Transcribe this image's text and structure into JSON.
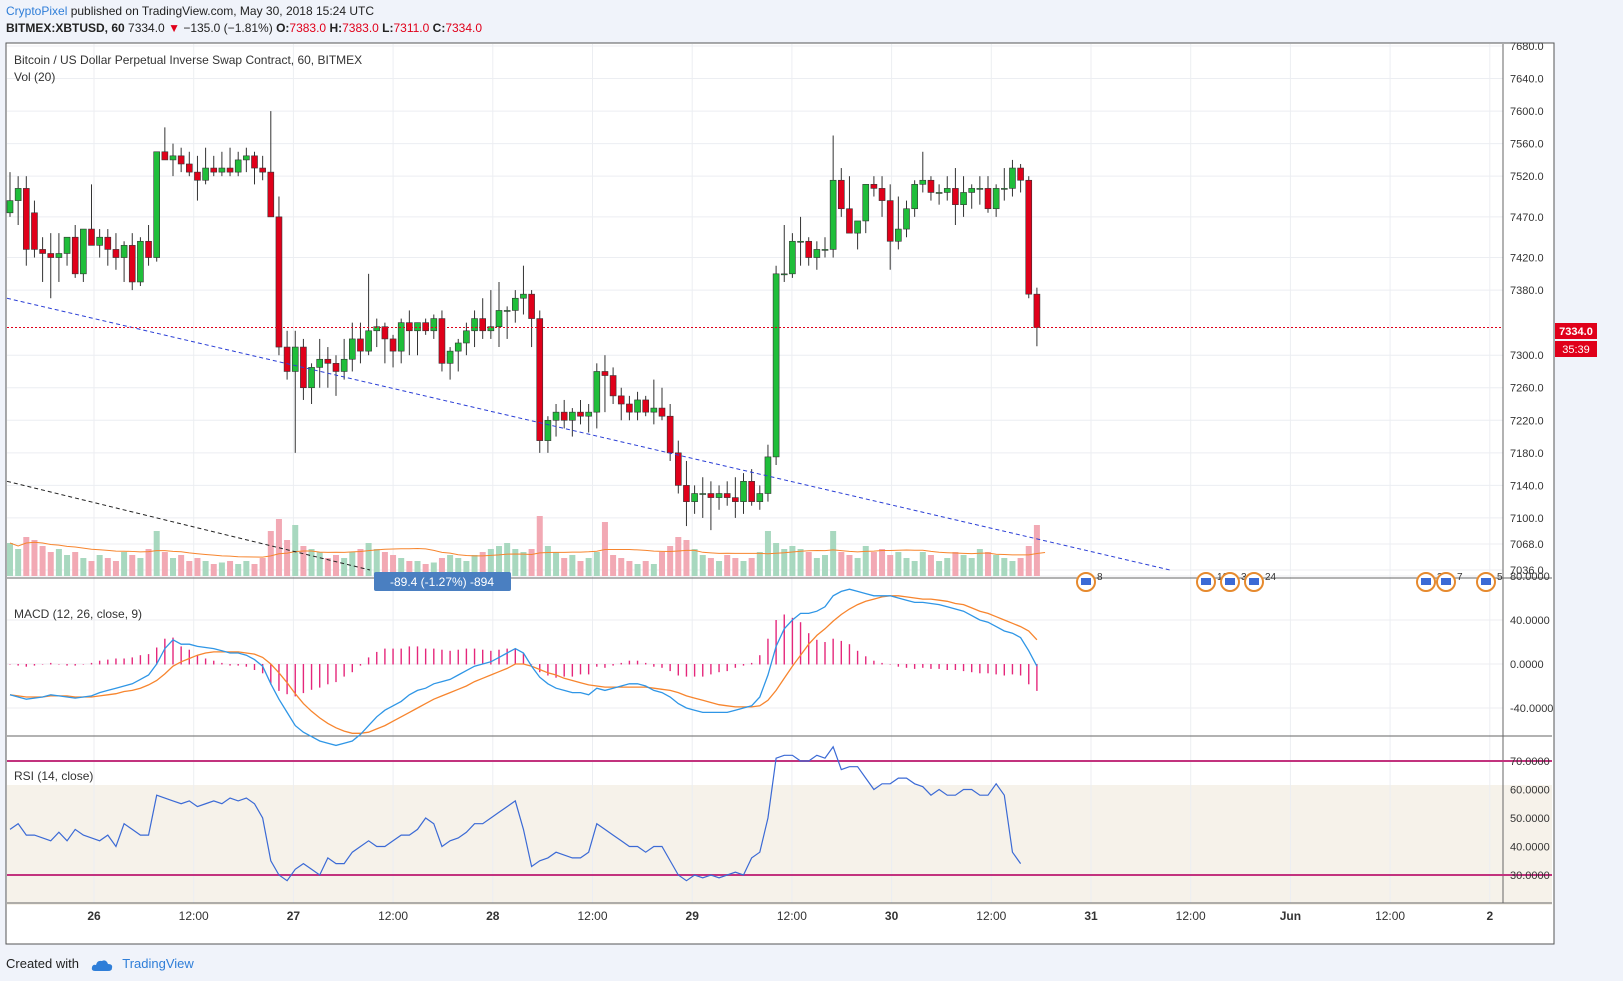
{
  "header": {
    "author": "CryptoPixel",
    "published": "published on TradingView.com, May 30, 2018 15:24 UTC",
    "symbol": "BITMEX:XBTUSD, 60",
    "last": "7334.0",
    "change": "−135.0 (−1.81%)",
    "o_label": "O:",
    "o_val": "7383.0",
    "h_label": "H:",
    "h_val": "7383.0",
    "l_label": "L:",
    "l_val": "7311.0",
    "c_label": "C:",
    "c_val": "7334.0"
  },
  "footer": {
    "created": "Created with",
    "brand": "TradingView"
  },
  "colors": {
    "up": "#1fbe3a",
    "down": "#e0001a",
    "vol_up": "#a8d8bf",
    "vol_down": "#f2a9b4",
    "macd": "#2f96e6",
    "signal": "#f7852e",
    "hist": "#e5277b",
    "rsi": "#3b6ad5",
    "rsi_band": "#c2337e",
    "trend_blue": "#2b3fd6",
    "trend_black": "#222222"
  },
  "chart_data": {
    "type": "candlestick",
    "title": "Bitcoin / US Dollar Perpetual Inverse Swap Contract, 60, BITMEX",
    "volume_label": "Vol (20)",
    "macd_label": "MACD (12, 26, close, 9)",
    "rsi_label": "RSI (14, close)",
    "price_axis": [
      "7680.0",
      "7640.0",
      "7600.0",
      "7560.0",
      "7520.0",
      "7470.0",
      "7420.0",
      "7380.0",
      "7300.0",
      "7260.0",
      "7220.0",
      "7180.0",
      "7140.0",
      "7100.0",
      "7068.0",
      "7036.0"
    ],
    "price_axis_values": [
      7680,
      7640,
      7600,
      7560,
      7520,
      7470,
      7420,
      7380,
      7300,
      7260,
      7220,
      7180,
      7140,
      7100,
      7068,
      7036
    ],
    "price_range": [
      7036,
      7680
    ],
    "last_price_label": "7334.0",
    "countdown_label": "35:39",
    "macd_axis": [
      "80.0000",
      "40.0000",
      "0.0000",
      "-40.0000"
    ],
    "macd_axis_values": [
      80,
      40,
      0,
      -40
    ],
    "rsi_axis": [
      "70.0000",
      "60.0000",
      "50.0000",
      "40.0000",
      "30.0000"
    ],
    "rsi_axis_values": [
      70,
      60,
      50,
      40,
      30
    ],
    "rsi_bands": [
      70,
      30
    ],
    "x_labels": [
      "26",
      "12:00",
      "27",
      "12:00",
      "28",
      "12:00",
      "29",
      "12:00",
      "30",
      "12:00",
      "31",
      "12:00",
      "Jun",
      "12:00",
      "2"
    ],
    "x_labels_bold": [
      true,
      false,
      true,
      false,
      true,
      false,
      true,
      false,
      true,
      false,
      true,
      false,
      true,
      false,
      true
    ],
    "measure_label": "-89.4 (-1.27%) -894",
    "event_markers": [
      "8",
      "102",
      "3",
      "24",
      "34",
      "7",
      "5"
    ],
    "candles_ohlc": [
      [
        7475,
        7525,
        7470,
        7490
      ],
      [
        7490,
        7520,
        7460,
        7505
      ],
      [
        7505,
        7520,
        7410,
        7430
      ],
      [
        7475,
        7490,
        7420,
        7430
      ],
      [
        7430,
        7445,
        7390,
        7425
      ],
      [
        7425,
        7450,
        7370,
        7420
      ],
      [
        7420,
        7450,
        7390,
        7425
      ],
      [
        7425,
        7440,
        7410,
        7445
      ],
      [
        7445,
        7460,
        7395,
        7400
      ],
      [
        7400,
        7450,
        7390,
        7455
      ],
      [
        7455,
        7510,
        7440,
        7435
      ],
      [
        7435,
        7455,
        7420,
        7445
      ],
      [
        7445,
        7455,
        7410,
        7430
      ],
      [
        7430,
        7450,
        7405,
        7420
      ],
      [
        7420,
        7440,
        7390,
        7435
      ],
      [
        7435,
        7450,
        7380,
        7390
      ],
      [
        7390,
        7445,
        7385,
        7440
      ],
      [
        7440,
        7460,
        7410,
        7420
      ],
      [
        7420,
        7450,
        7415,
        7550
      ],
      [
        7550,
        7580,
        7540,
        7540
      ],
      [
        7540,
        7560,
        7520,
        7545
      ],
      [
        7545,
        7555,
        7525,
        7535
      ],
      [
        7535,
        7550,
        7520,
        7525
      ],
      [
        7525,
        7545,
        7490,
        7515
      ],
      [
        7515,
        7555,
        7510,
        7530
      ],
      [
        7530,
        7545,
        7520,
        7525
      ],
      [
        7525,
        7550,
        7520,
        7530
      ],
      [
        7530,
        7555,
        7520,
        7525
      ],
      [
        7525,
        7550,
        7520,
        7540
      ],
      [
        7540,
        7555,
        7525,
        7545
      ],
      [
        7545,
        7550,
        7510,
        7530
      ],
      [
        7530,
        7545,
        7515,
        7525
      ],
      [
        7525,
        7600,
        7470,
        7470
      ],
      [
        7470,
        7495,
        7300,
        7310
      ],
      [
        7310,
        7330,
        7270,
        7280
      ],
      [
        7280,
        7330,
        7180,
        7310
      ],
      [
        7310,
        7320,
        7245,
        7260
      ],
      [
        7260,
        7290,
        7240,
        7285
      ],
      [
        7285,
        7320,
        7260,
        7295
      ],
      [
        7295,
        7310,
        7260,
        7290
      ],
      [
        7290,
        7300,
        7250,
        7280
      ],
      [
        7280,
        7320,
        7270,
        7295
      ],
      [
        7295,
        7340,
        7280,
        7320
      ],
      [
        7320,
        7340,
        7290,
        7305
      ],
      [
        7305,
        7400,
        7300,
        7330
      ],
      [
        7330,
        7345,
        7310,
        7335
      ],
      [
        7335,
        7340,
        7290,
        7320
      ],
      [
        7320,
        7325,
        7285,
        7305
      ],
      [
        7305,
        7345,
        7290,
        7340
      ],
      [
        7340,
        7355,
        7300,
        7330
      ],
      [
        7330,
        7340,
        7300,
        7340
      ],
      [
        7340,
        7345,
        7325,
        7330
      ],
      [
        7330,
        7350,
        7320,
        7345
      ],
      [
        7345,
        7355,
        7280,
        7290
      ],
      [
        7290,
        7310,
        7270,
        7305
      ],
      [
        7305,
        7320,
        7280,
        7315
      ],
      [
        7315,
        7340,
        7300,
        7330
      ],
      [
        7330,
        7355,
        7310,
        7345
      ],
      [
        7345,
        7370,
        7320,
        7330
      ],
      [
        7330,
        7380,
        7320,
        7335
      ],
      [
        7335,
        7390,
        7310,
        7355
      ],
      [
        7355,
        7360,
        7320,
        7355
      ],
      [
        7355,
        7380,
        7340,
        7370
      ],
      [
        7370,
        7410,
        7350,
        7375
      ],
      [
        7375,
        7380,
        7310,
        7345
      ],
      [
        7345,
        7355,
        7180,
        7195
      ],
      [
        7195,
        7225,
        7180,
        7220
      ],
      [
        7220,
        7240,
        7200,
        7230
      ],
      [
        7230,
        7245,
        7210,
        7220
      ],
      [
        7220,
        7235,
        7200,
        7230
      ],
      [
        7230,
        7245,
        7215,
        7225
      ],
      [
        7225,
        7240,
        7205,
        7230
      ],
      [
        7230,
        7290,
        7210,
        7280
      ],
      [
        7280,
        7300,
        7230,
        7275
      ],
      [
        7275,
        7285,
        7240,
        7250
      ],
      [
        7250,
        7260,
        7220,
        7240
      ],
      [
        7240,
        7250,
        7220,
        7230
      ],
      [
        7230,
        7255,
        7220,
        7245
      ],
      [
        7245,
        7250,
        7225,
        7230
      ],
      [
        7230,
        7270,
        7215,
        7235
      ],
      [
        7235,
        7260,
        7220,
        7225
      ],
      [
        7225,
        7240,
        7170,
        7180
      ],
      [
        7180,
        7195,
        7130,
        7140
      ],
      [
        7140,
        7170,
        7090,
        7120
      ],
      [
        7120,
        7140,
        7105,
        7130
      ],
      [
        7130,
        7150,
        7100,
        7130
      ],
      [
        7130,
        7145,
        7085,
        7125
      ],
      [
        7125,
        7140,
        7110,
        7130
      ],
      [
        7130,
        7145,
        7115,
        7125
      ],
      [
        7125,
        7150,
        7100,
        7120
      ],
      [
        7120,
        7155,
        7105,
        7145
      ],
      [
        7145,
        7160,
        7115,
        7120
      ],
      [
        7120,
        7140,
        7110,
        7130
      ],
      [
        7130,
        7190,
        7120,
        7175
      ],
      [
        7175,
        7410,
        7165,
        7400
      ],
      [
        7400,
        7460,
        7390,
        7400
      ],
      [
        7400,
        7450,
        7395,
        7440
      ],
      [
        7440,
        7470,
        7410,
        7440
      ],
      [
        7440,
        7445,
        7410,
        7420
      ],
      [
        7420,
        7440,
        7405,
        7430
      ],
      [
        7430,
        7445,
        7420,
        7430
      ],
      [
        7430,
        7570,
        7420,
        7515
      ],
      [
        7515,
        7530,
        7470,
        7480
      ],
      [
        7480,
        7520,
        7460,
        7450
      ],
      [
        7450,
        7460,
        7430,
        7465
      ],
      [
        7465,
        7505,
        7450,
        7510
      ],
      [
        7510,
        7520,
        7495,
        7505
      ],
      [
        7505,
        7520,
        7470,
        7490
      ],
      [
        7490,
        7510,
        7405,
        7440
      ],
      [
        7440,
        7495,
        7430,
        7455
      ],
      [
        7455,
        7490,
        7445,
        7480
      ],
      [
        7480,
        7515,
        7470,
        7510
      ],
      [
        7510,
        7550,
        7500,
        7515
      ],
      [
        7515,
        7520,
        7490,
        7500
      ],
      [
        7500,
        7510,
        7485,
        7500
      ],
      [
        7500,
        7520,
        7490,
        7505
      ],
      [
        7505,
        7530,
        7460,
        7485
      ],
      [
        7485,
        7520,
        7470,
        7500
      ],
      [
        7500,
        7510,
        7480,
        7505
      ],
      [
        7505,
        7520,
        7485,
        7505
      ],
      [
        7505,
        7520,
        7475,
        7480
      ],
      [
        7480,
        7510,
        7470,
        7505
      ],
      [
        7505,
        7530,
        7490,
        7505
      ],
      [
        7505,
        7540,
        7495,
        7530
      ],
      [
        7530,
        7535,
        7500,
        7515
      ],
      [
        7515,
        7520,
        7370,
        7375
      ],
      [
        7375,
        7383,
        7311,
        7334
      ]
    ],
    "volume": [
      22,
      18,
      26,
      24,
      20,
      16,
      18,
      14,
      16,
      12,
      10,
      14,
      12,
      10,
      16,
      14,
      12,
      18,
      30,
      16,
      12,
      14,
      10,
      12,
      10,
      8,
      9,
      10,
      8,
      10,
      8,
      12,
      30,
      38,
      24,
      34,
      20,
      18,
      16,
      12,
      14,
      12,
      16,
      18,
      22,
      18,
      16,
      14,
      12,
      10,
      10,
      8,
      9,
      12,
      14,
      12,
      10,
      14,
      16,
      18,
      20,
      22,
      18,
      16,
      18,
      40,
      20,
      16,
      12,
      14,
      10,
      12,
      16,
      36,
      14,
      12,
      10,
      8,
      10,
      8,
      16,
      20,
      26,
      24,
      18,
      14,
      12,
      10,
      14,
      12,
      10,
      12,
      16,
      30,
      22,
      18,
      20,
      18,
      16,
      12,
      14,
      30,
      16,
      14,
      12,
      20,
      16,
      18,
      14,
      16,
      12,
      10,
      16,
      14,
      10,
      12,
      16,
      14,
      12,
      18,
      16,
      14,
      12,
      10,
      12,
      20,
      34,
      32
    ],
    "macd_values": [
      -28,
      -30,
      -32,
      -31,
      -30,
      -28,
      -29,
      -30,
      -31,
      -30,
      -29,
      -26,
      -24,
      -22,
      -20,
      -18,
      -14,
      -10,
      0,
      14,
      22,
      18,
      18,
      16,
      15,
      14,
      12,
      10,
      10,
      8,
      4,
      -2,
      -18,
      -32,
      -44,
      -56,
      -62,
      -66,
      -70,
      -72,
      -74,
      -72,
      -70,
      -64,
      -56,
      -48,
      -42,
      -38,
      -34,
      -28,
      -24,
      -22,
      -18,
      -16,
      -14,
      -10,
      -6,
      -2,
      0,
      2,
      6,
      10,
      14,
      10,
      -2,
      -12,
      -18,
      -22,
      -24,
      -26,
      -26,
      -28,
      -22,
      -24,
      -22,
      -20,
      -18,
      -18,
      -20,
      -24,
      -26,
      -30,
      -36,
      -40,
      -42,
      -44,
      -44,
      -44,
      -44,
      -42,
      -40,
      -38,
      -30,
      -10,
      16,
      32,
      40,
      46,
      46,
      48,
      52,
      62,
      66,
      68,
      66,
      64,
      62,
      62,
      62,
      60,
      58,
      56,
      56,
      55,
      54,
      52,
      50,
      48,
      44,
      40,
      38,
      34,
      30,
      28,
      24,
      12,
      -2
    ],
    "signal_values": [
      -28,
      -29,
      -30,
      -30,
      -30,
      -29,
      -29,
      -29,
      -30,
      -30,
      -30,
      -29,
      -28,
      -27,
      -25,
      -24,
      -22,
      -19,
      -15,
      -9,
      -2,
      2,
      5,
      8,
      10,
      11,
      11,
      11,
      11,
      10,
      9,
      6,
      0,
      -8,
      -17,
      -27,
      -36,
      -43,
      -49,
      -54,
      -58,
      -61,
      -63,
      -63,
      -62,
      -59,
      -56,
      -52,
      -48,
      -44,
      -40,
      -36,
      -32,
      -29,
      -26,
      -23,
      -20,
      -16,
      -13,
      -10,
      -7,
      -4,
      0,
      0,
      -2,
      -5,
      -8,
      -10,
      -13,
      -15,
      -17,
      -19,
      -20,
      -21,
      -21,
      -21,
      -21,
      -21,
      -21,
      -22,
      -23,
      -24,
      -26,
      -29,
      -31,
      -33,
      -35,
      -37,
      -38,
      -39,
      -39,
      -39,
      -38,
      -33,
      -24,
      -13,
      -2,
      8,
      18,
      26,
      32,
      39,
      45,
      50,
      54,
      57,
      59,
      61,
      62,
      62,
      61,
      60,
      59,
      59,
      58,
      57,
      55,
      54,
      51,
      48,
      46,
      43,
      40,
      37,
      34,
      30,
      22
    ],
    "rsi_values": [
      46,
      48,
      44,
      44,
      43,
      42,
      45,
      42,
      46,
      44,
      43,
      42,
      44,
      40,
      48,
      46,
      44,
      44,
      58,
      57,
      56,
      55,
      56,
      54,
      55,
      56,
      55,
      57,
      56,
      57,
      55,
      50,
      35,
      30,
      28,
      32,
      34,
      32,
      30,
      36,
      34,
      34,
      38,
      40,
      42,
      40,
      40,
      42,
      44,
      44,
      46,
      50,
      48,
      40,
      42,
      43,
      45,
      48,
      48,
      50,
      52,
      54,
      56,
      46,
      33,
      35,
      36,
      38,
      37,
      36,
      36,
      38,
      48,
      46,
      44,
      42,
      40,
      40,
      38,
      40,
      40,
      35,
      30,
      28,
      30,
      29,
      30,
      29,
      30,
      31,
      30,
      36,
      38,
      50,
      71,
      72,
      72,
      70,
      70,
      72,
      71,
      75,
      67,
      68,
      68,
      64,
      60,
      62,
      62,
      64,
      64,
      62,
      61,
      58,
      60,
      58,
      58,
      60,
      60,
      58,
      58,
      62,
      58,
      38,
      34
    ]
  }
}
